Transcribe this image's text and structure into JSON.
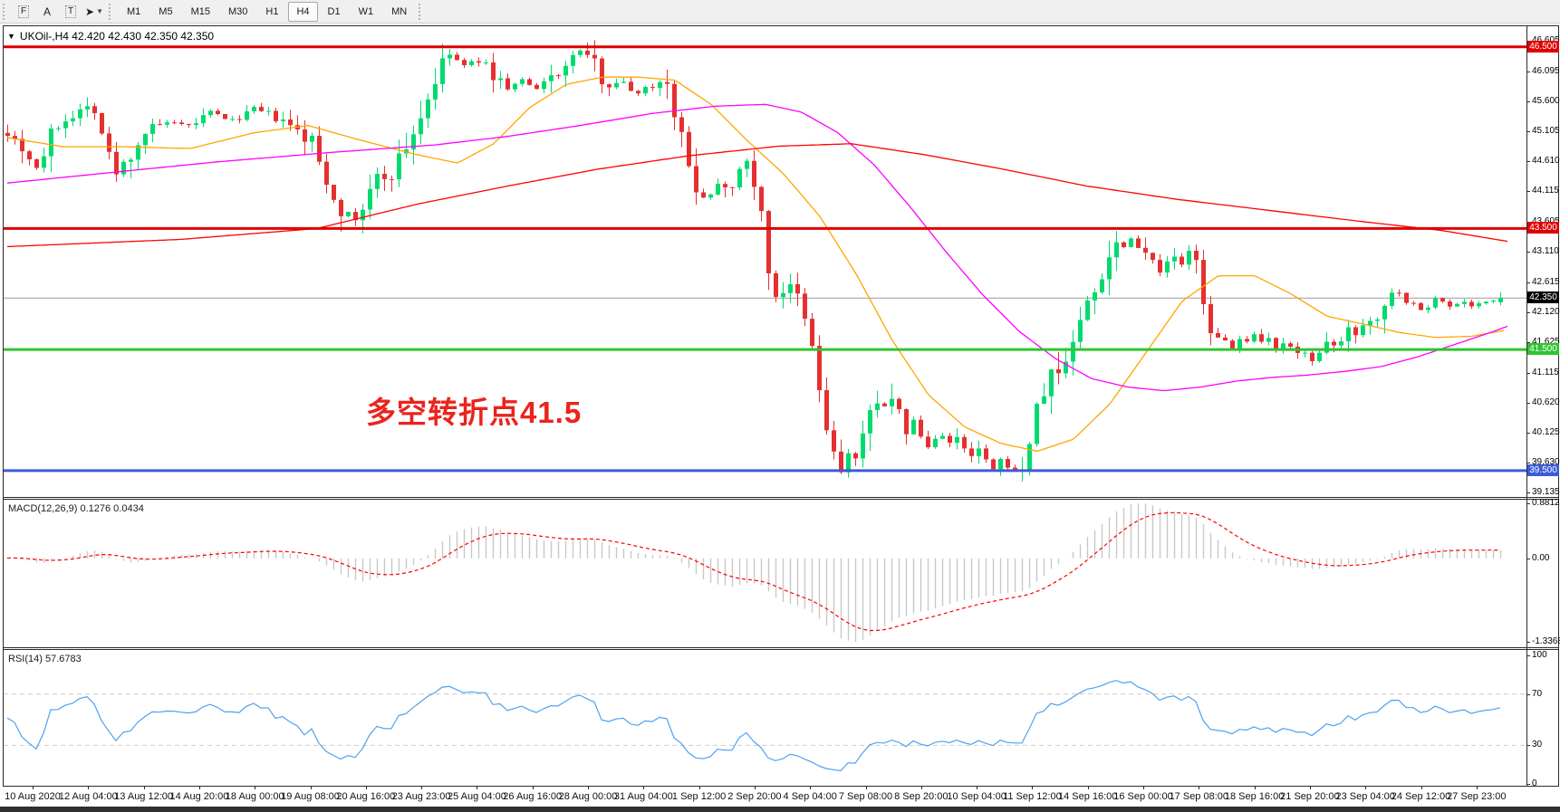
{
  "toolbar": {
    "tools": [
      {
        "name": "cursor-tool",
        "glyph": "F",
        "boxed": true
      },
      {
        "name": "label-tool",
        "glyph": "A",
        "boxed": false
      },
      {
        "name": "text-tool",
        "glyph": "T",
        "boxed": true
      },
      {
        "name": "arrows-tool",
        "glyph": "➤",
        "boxed": false,
        "caret": true
      }
    ],
    "timeframes": [
      "M1",
      "M5",
      "M15",
      "M30",
      "H1",
      "H4",
      "D1",
      "W1",
      "MN"
    ],
    "active_timeframe": "H4"
  },
  "main_chart": {
    "dropdown_glyph": "▼",
    "title_line": "UKOil-,H4  42.420 42.430 42.350 42.350",
    "annotation": "多空转折点41.5",
    "annotation_color": "#e8251d"
  },
  "macd_panel": {
    "title_line": "MACD(12,26,9) 0.1276 0.0434",
    "scale_labels": [
      {
        "text": "0.8812",
        "value": 0.8812
      },
      {
        "text": "0.00",
        "value": 0.0
      },
      {
        "text": "-1.3368",
        "value": -1.3368
      }
    ]
  },
  "rsi_panel": {
    "title_line": "RSI(14) 57.6783",
    "levels": [
      100,
      70,
      30,
      0
    ],
    "dashed_levels": [
      70,
      30
    ]
  },
  "chart_data": {
    "type": "candlestick",
    "symbol": "UKOil-",
    "timeframe": "H4",
    "bars": 207,
    "price_axis": {
      "max": 46.855,
      "min": 39.065,
      "ticks": [
        46.605,
        46.095,
        45.6,
        45.105,
        44.61,
        44.115,
        43.605,
        43.11,
        42.615,
        42.12,
        41.625,
        41.115,
        40.62,
        40.125,
        39.63,
        39.135
      ]
    },
    "current_price": {
      "price": 42.35,
      "label": "42.350",
      "line_color": "#9c9c9c",
      "label_bg": "#000000"
    },
    "h_lines": [
      {
        "price": 46.5,
        "label": "46.500",
        "color": "#e00000",
        "thickness": 3
      },
      {
        "price": 43.5,
        "label": "43.500",
        "color": "#e00000",
        "thickness": 3
      },
      {
        "price": 41.5,
        "label": "41.500",
        "color": "#2fc42f",
        "thickness": 3
      },
      {
        "price": 39.5,
        "label": "39.500",
        "color": "#3c5bd7",
        "thickness": 3
      }
    ],
    "colors": {
      "up": "#00db6d",
      "down": "#e53030",
      "ma_fast": "#ffa500",
      "ma_mid": "#ff00ff",
      "ma_slow": "#ff0000",
      "macd_hist": "#c8c8c8",
      "macd_signal": "#ff0000",
      "rsi": "#4da1f0",
      "level_dash": "#cccccc"
    },
    "macd": {
      "max": 0.8812,
      "min": -1.3368,
      "fast": 12,
      "slow": 26,
      "signal": 9
    },
    "rsi": {
      "period": 14,
      "last": 57.6783
    },
    "close_path": [
      [
        8,
        45.1
      ],
      [
        24,
        44.85
      ],
      [
        40,
        44.5
      ],
      [
        64,
        45.25
      ],
      [
        88,
        45.45
      ],
      [
        104,
        45.55
      ],
      [
        118,
        44.75
      ],
      [
        128,
        44.4
      ],
      [
        144,
        44.75
      ],
      [
        160,
        45.1
      ],
      [
        184,
        45.25
      ],
      [
        208,
        45.18
      ],
      [
        232,
        45.42
      ],
      [
        256,
        45.28
      ],
      [
        280,
        45.48
      ],
      [
        304,
        45.32
      ],
      [
        320,
        45.18
      ],
      [
        344,
        44.92
      ],
      [
        360,
        44.3
      ],
      [
        376,
        43.85
      ],
      [
        390,
        43.6
      ],
      [
        400,
        43.85
      ],
      [
        416,
        44.32
      ],
      [
        432,
        44.42
      ],
      [
        448,
        44.85
      ],
      [
        464,
        45.35
      ],
      [
        480,
        45.95
      ],
      [
        496,
        46.38
      ],
      [
        512,
        46.18
      ],
      [
        528,
        46.28
      ],
      [
        544,
        46.05
      ],
      [
        560,
        45.82
      ],
      [
        576,
        45.95
      ],
      [
        592,
        45.78
      ],
      [
        608,
        46.02
      ],
      [
        624,
        46.18
      ],
      [
        640,
        46.45
      ],
      [
        654,
        46.25
      ],
      [
        668,
        45.88
      ],
      [
        684,
        45.95
      ],
      [
        700,
        45.72
      ],
      [
        716,
        45.85
      ],
      [
        736,
        45.95
      ],
      [
        748,
        45.25
      ],
      [
        758,
        44.55
      ],
      [
        768,
        44.22
      ],
      [
        780,
        43.95
      ],
      [
        792,
        44.28
      ],
      [
        806,
        44.2
      ],
      [
        818,
        44.5
      ],
      [
        828,
        44.6
      ],
      [
        838,
        43.9
      ],
      [
        848,
        42.8
      ],
      [
        858,
        42.35
      ],
      [
        868,
        42.55
      ],
      [
        878,
        42.4
      ],
      [
        888,
        41.95
      ],
      [
        898,
        41.4
      ],
      [
        908,
        40.45
      ],
      [
        918,
        39.8
      ],
      [
        928,
        39.5
      ],
      [
        938,
        39.85
      ],
      [
        946,
        39.6
      ],
      [
        954,
        40.1
      ],
      [
        962,
        40.55
      ],
      [
        970,
        40.8
      ],
      [
        978,
        40.5
      ],
      [
        986,
        40.62
      ],
      [
        994,
        40.38
      ],
      [
        1002,
        40.12
      ],
      [
        1010,
        40.32
      ],
      [
        1018,
        39.98
      ],
      [
        1026,
        39.85
      ],
      [
        1034,
        40.08
      ],
      [
        1042,
        40.12
      ],
      [
        1050,
        39.9
      ],
      [
        1058,
        40.02
      ],
      [
        1066,
        39.78
      ],
      [
        1074,
        39.7
      ],
      [
        1082,
        39.88
      ],
      [
        1090,
        39.58
      ],
      [
        1098,
        39.48
      ],
      [
        1106,
        39.68
      ],
      [
        1114,
        39.55
      ],
      [
        1122,
        39.42
      ],
      [
        1130,
        39.62
      ],
      [
        1138,
        40.12
      ],
      [
        1146,
        40.58
      ],
      [
        1154,
        40.88
      ],
      [
        1162,
        41.18
      ],
      [
        1170,
        41.08
      ],
      [
        1178,
        41.42
      ],
      [
        1186,
        41.75
      ],
      [
        1194,
        42.05
      ],
      [
        1202,
        42.35
      ],
      [
        1210,
        42.52
      ],
      [
        1218,
        42.85
      ],
      [
        1226,
        43.15
      ],
      [
        1234,
        43.28
      ],
      [
        1242,
        43.22
      ],
      [
        1250,
        43.38
      ],
      [
        1258,
        43.12
      ],
      [
        1266,
        43.28
      ],
      [
        1274,
        42.92
      ],
      [
        1282,
        42.68
      ],
      [
        1290,
        43.02
      ],
      [
        1298,
        43.08
      ],
      [
        1306,
        42.82
      ],
      [
        1314,
        43.15
      ],
      [
        1322,
        42.8
      ],
      [
        1330,
        42.25
      ],
      [
        1338,
        41.72
      ],
      [
        1346,
        41.52
      ],
      [
        1354,
        41.68
      ],
      [
        1362,
        41.48
      ],
      [
        1370,
        41.72
      ],
      [
        1378,
        41.58
      ],
      [
        1386,
        41.78
      ],
      [
        1394,
        41.52
      ],
      [
        1402,
        41.68
      ],
      [
        1410,
        41.42
      ],
      [
        1418,
        41.58
      ],
      [
        1426,
        41.52
      ],
      [
        1434,
        41.38
      ],
      [
        1442,
        41.52
      ],
      [
        1450,
        41.28
      ],
      [
        1458,
        41.48
      ],
      [
        1466,
        41.58
      ],
      [
        1474,
        41.52
      ],
      [
        1482,
        41.68
      ],
      [
        1490,
        41.88
      ],
      [
        1498,
        41.78
      ],
      [
        1506,
        42.02
      ],
      [
        1514,
        41.92
      ],
      [
        1522,
        42.12
      ],
      [
        1530,
        42.22
      ],
      [
        1538,
        42.58
      ],
      [
        1546,
        42.42
      ],
      [
        1554,
        42.18
      ],
      [
        1562,
        42.28
      ],
      [
        1570,
        42.12
      ],
      [
        1578,
        42.22
      ],
      [
        1586,
        42.38
      ],
      [
        1594,
        42.28
      ],
      [
        1602,
        42.18
      ],
      [
        1610,
        42.32
      ],
      [
        1618,
        42.28
      ],
      [
        1626,
        42.22
      ],
      [
        1634,
        42.28
      ],
      [
        1642,
        42.3
      ],
      [
        1650,
        42.28
      ],
      [
        1656,
        42.35
      ]
    ],
    "ma_lines": [
      {
        "name": "ma-fast-orange",
        "color": "#ffa500",
        "points": [
          [
            8,
            45.0
          ],
          [
            70,
            44.85
          ],
          [
            140,
            44.85
          ],
          [
            210,
            44.82
          ],
          [
            280,
            45.08
          ],
          [
            340,
            45.2
          ],
          [
            400,
            44.95
          ],
          [
            460,
            44.72
          ],
          [
            505,
            44.58
          ],
          [
            545,
            44.9
          ],
          [
            585,
            45.5
          ],
          [
            625,
            45.88
          ],
          [
            665,
            46.0
          ],
          [
            705,
            46.0
          ],
          [
            745,
            45.95
          ],
          [
            785,
            45.55
          ],
          [
            825,
            44.95
          ],
          [
            865,
            44.4
          ],
          [
            905,
            43.7
          ],
          [
            945,
            42.75
          ],
          [
            985,
            41.65
          ],
          [
            1025,
            40.75
          ],
          [
            1065,
            40.22
          ],
          [
            1105,
            39.95
          ],
          [
            1145,
            39.82
          ],
          [
            1185,
            40.02
          ],
          [
            1225,
            40.6
          ],
          [
            1265,
            41.45
          ],
          [
            1305,
            42.3
          ],
          [
            1345,
            42.72
          ],
          [
            1385,
            42.72
          ],
          [
            1425,
            42.42
          ],
          [
            1465,
            42.05
          ],
          [
            1505,
            41.92
          ],
          [
            1545,
            41.78
          ],
          [
            1585,
            41.7
          ],
          [
            1625,
            41.72
          ],
          [
            1662,
            41.82
          ]
        ]
      },
      {
        "name": "ma-mid-magenta",
        "color": "#ff00ff",
        "points": [
          [
            8,
            44.25
          ],
          [
            120,
            44.42
          ],
          [
            240,
            44.6
          ],
          [
            360,
            44.75
          ],
          [
            480,
            44.88
          ],
          [
            560,
            45.02
          ],
          [
            640,
            45.2
          ],
          [
            720,
            45.4
          ],
          [
            790,
            45.52
          ],
          [
            845,
            45.55
          ],
          [
            885,
            45.42
          ],
          [
            925,
            45.08
          ],
          [
            965,
            44.55
          ],
          [
            1005,
            43.85
          ],
          [
            1045,
            43.1
          ],
          [
            1085,
            42.4
          ],
          [
            1125,
            41.8
          ],
          [
            1165,
            41.35
          ],
          [
            1205,
            41.02
          ],
          [
            1245,
            40.88
          ],
          [
            1285,
            40.82
          ],
          [
            1325,
            40.88
          ],
          [
            1365,
            40.98
          ],
          [
            1405,
            41.04
          ],
          [
            1445,
            41.08
          ],
          [
            1485,
            41.14
          ],
          [
            1525,
            41.22
          ],
          [
            1565,
            41.38
          ],
          [
            1605,
            41.58
          ],
          [
            1645,
            41.78
          ],
          [
            1667,
            41.9
          ]
        ]
      },
      {
        "name": "ma-slow-red",
        "color": "#ff0000",
        "points": [
          [
            8,
            43.2
          ],
          [
            200,
            43.32
          ],
          [
            350,
            43.5
          ],
          [
            460,
            43.9
          ],
          [
            560,
            44.2
          ],
          [
            660,
            44.48
          ],
          [
            760,
            44.7
          ],
          [
            860,
            44.86
          ],
          [
            940,
            44.9
          ],
          [
            1020,
            44.72
          ],
          [
            1100,
            44.5
          ],
          [
            1200,
            44.2
          ],
          [
            1300,
            43.98
          ],
          [
            1400,
            43.8
          ],
          [
            1500,
            43.62
          ],
          [
            1590,
            43.47
          ],
          [
            1667,
            43.28
          ]
        ]
      }
    ],
    "time_labels": [
      "10 Aug 2020",
      "12 Aug 04:00",
      "13 Aug 12:00",
      "14 Aug 20:00",
      "18 Aug 00:00",
      "19 Aug 08:00",
      "20 Aug 16:00",
      "23 Aug 23:00",
      "25 Aug 04:00",
      "26 Aug 16:00",
      "28 Aug 00:00",
      "31 Aug 04:00",
      "1 Sep 12:00",
      "2 Sep 20:00",
      "4 Sep 04:00",
      "7 Sep 08:00",
      "8 Sep 20:00",
      "10 Sep 04:00",
      "11 Sep 12:00",
      "14 Sep 16:00",
      "16 Sep 00:00",
      "17 Sep 08:00",
      "18 Sep 16:00",
      "21 Sep 20:00",
      "23 Sep 04:00",
      "24 Sep 12:00",
      "27 Sep 23:00"
    ]
  }
}
